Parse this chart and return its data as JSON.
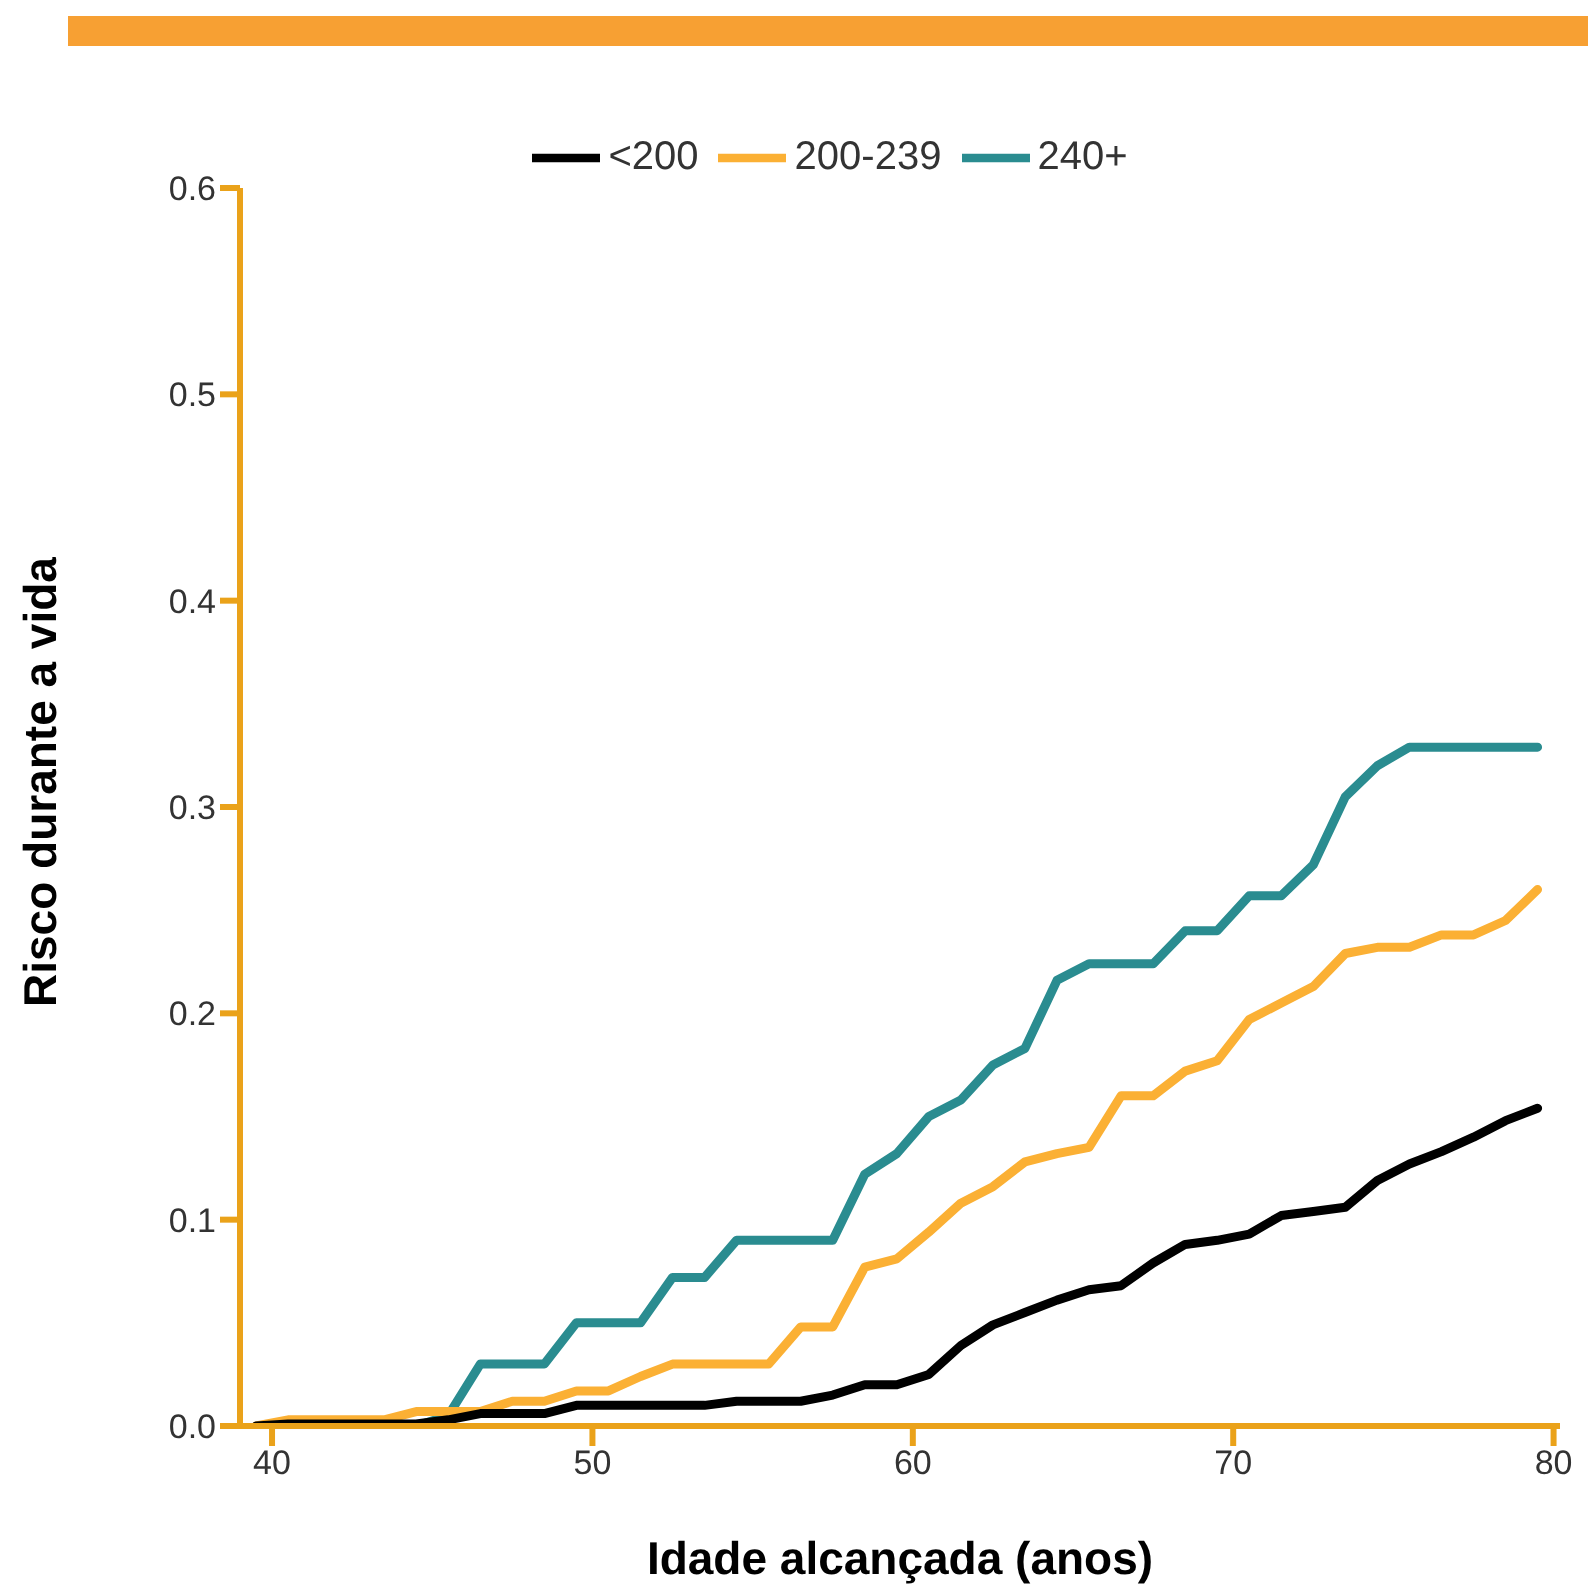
{
  "chart_data": {
    "type": "line",
    "xlabel": "Idade alcançada (anos)",
    "ylabel": "Risco durante a vida",
    "x": [
      39.5,
      40.5,
      41.5,
      42.5,
      43.5,
      44.5,
      45.5,
      46.5,
      47.5,
      48.5,
      49.5,
      50.5,
      51.5,
      52.5,
      53.5,
      54.5,
      55.5,
      56.5,
      57.5,
      58.5,
      59.5,
      60.5,
      61.5,
      62.5,
      63.5,
      64.5,
      65.5,
      66.5,
      67.5,
      68.5,
      69.5,
      70.5,
      71.5,
      72.5,
      73.5,
      74.5,
      75.5,
      76.5,
      77.5,
      78.5,
      79.5
    ],
    "series": [
      {
        "name": "<200",
        "color": "#000000",
        "values": [
          0,
          0.001,
          0.001,
          0.001,
          0.001,
          0.001,
          0.003,
          0.006,
          0.006,
          0.006,
          0.01,
          0.01,
          0.01,
          0.01,
          0.01,
          0.012,
          0.012,
          0.012,
          0.015,
          0.02,
          0.02,
          0.025,
          0.039,
          0.049,
          0.055,
          0.061,
          0.066,
          0.068,
          0.079,
          0.088,
          0.09,
          0.093,
          0.102,
          0.104,
          0.106,
          0.119,
          0.127,
          0.133,
          0.14,
          0.148,
          0.154
        ]
      },
      {
        "name": "200-239",
        "color": "#fbb034",
        "values": [
          0,
          0.003,
          0.003,
          0.003,
          0.003,
          0.007,
          0.007,
          0.007,
          0.012,
          0.012,
          0.017,
          0.017,
          0.024,
          0.03,
          0.03,
          0.03,
          0.03,
          0.048,
          0.048,
          0.077,
          0.081,
          0.094,
          0.108,
          0.116,
          0.128,
          0.132,
          0.135,
          0.16,
          0.16,
          0.172,
          0.177,
          0.197,
          0.205,
          0.213,
          0.229,
          0.232,
          0.232,
          0.238,
          0.238,
          0.245,
          0.26
        ]
      },
      {
        "name": "240+",
        "color": "#2a8c90",
        "values": [
          null,
          null,
          null,
          null,
          null,
          0,
          0.005,
          0.03,
          0.03,
          0.03,
          0.05,
          0.05,
          0.05,
          0.072,
          0.072,
          0.09,
          0.09,
          0.09,
          0.09,
          0.122,
          0.132,
          0.15,
          0.158,
          0.175,
          0.183,
          0.216,
          0.224,
          0.224,
          0.224,
          0.24,
          0.24,
          0.257,
          0.257,
          0.272,
          0.305,
          0.32,
          0.329,
          0.329,
          0.329,
          0.329,
          0.329
        ]
      }
    ],
    "xlim": [
      39,
      80.2
    ],
    "xticks": [
      40,
      50,
      60,
      70,
      80
    ],
    "ylim": [
      0,
      0.6
    ],
    "yticks": [
      {
        "value": 0,
        "label": "0.0"
      },
      0.1,
      0.2,
      0.3,
      0.4,
      0.5,
      0.6
    ],
    "grid": false,
    "legend": "top",
    "marker": "none",
    "line_style": "solid"
  }
}
